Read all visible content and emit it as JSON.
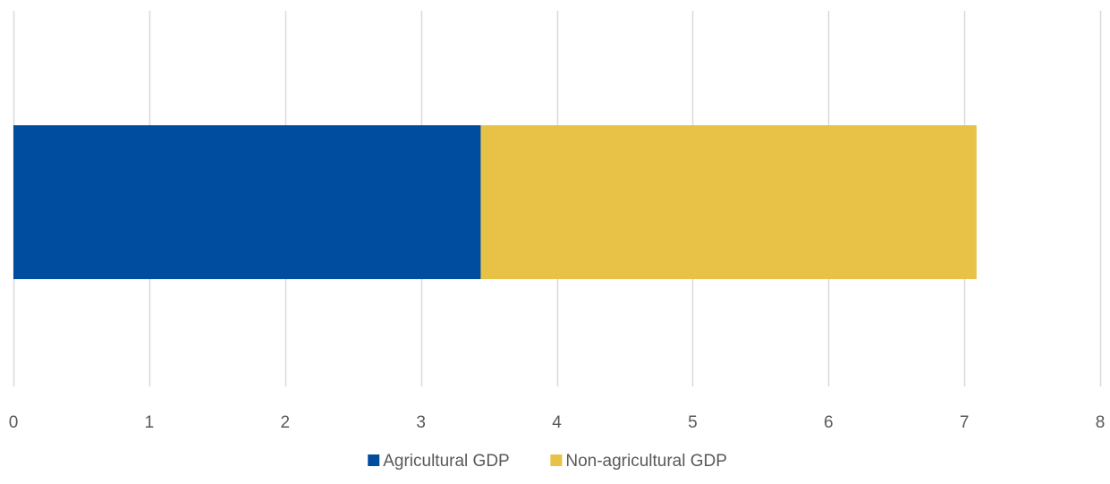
{
  "chart_data": {
    "type": "bar",
    "orientation": "horizontal",
    "stacked": true,
    "categories": [
      ""
    ],
    "series": [
      {
        "name": "Agricultural GDP",
        "values": [
          3.44
        ],
        "color": "#004c9e"
      },
      {
        "name": "Non-agricultural GDP",
        "values": [
          3.65
        ],
        "color": "#e8c147"
      }
    ],
    "title": "",
    "xlabel": "",
    "ylabel": "",
    "xlim": [
      0,
      8
    ],
    "xticks": [
      "0",
      "1",
      "2",
      "3",
      "4",
      "5",
      "6",
      "7",
      "8"
    ],
    "grid": true,
    "gridline_color": "#d9d9d9",
    "tick_label_color": "#595959",
    "legend_position": "bottom"
  }
}
